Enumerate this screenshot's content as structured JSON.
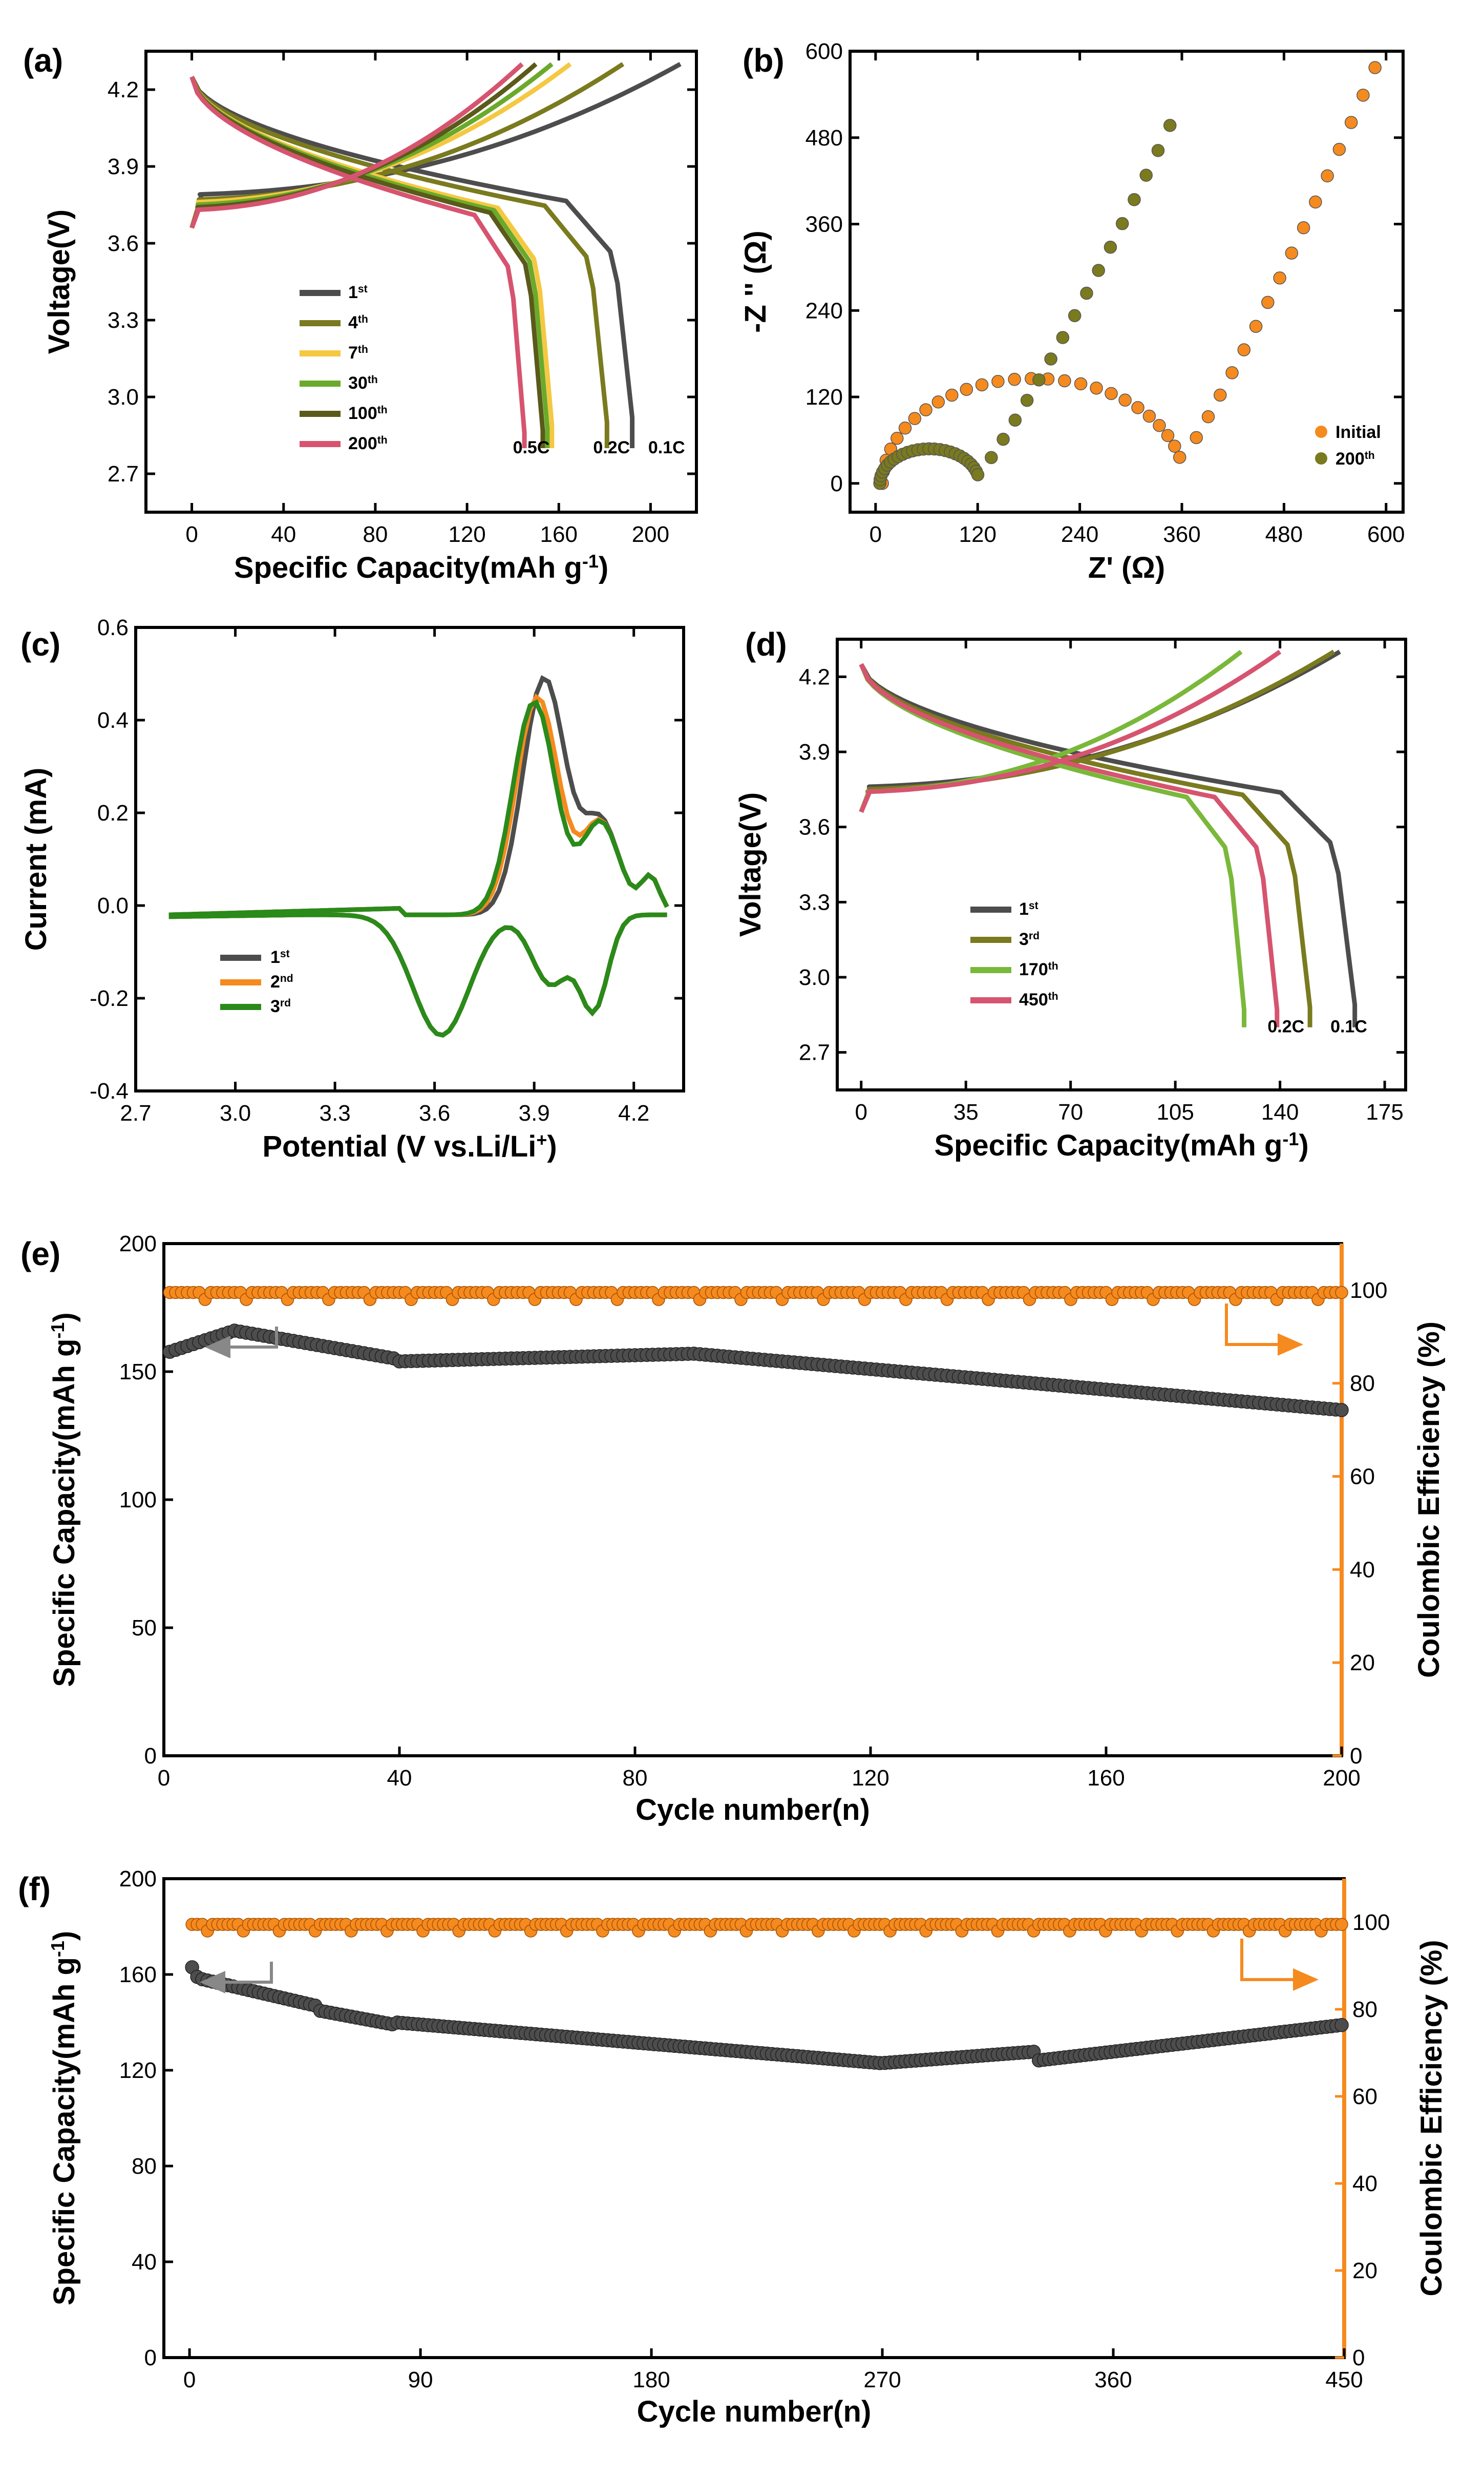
{
  "figure": {
    "panels": [
      "(a)",
      "(b)",
      "(c)",
      "(d)",
      "(e)",
      "(f)"
    ]
  },
  "chart_data": [
    {
      "id": "a",
      "type": "line",
      "panel_label": "(a)",
      "xlabel": "Specific Capacity(mAh g",
      "xlabel_sup": "-1",
      "xlabel_end": ")",
      "ylabel": "Voltage(V)",
      "xlim": [
        -20,
        220
      ],
      "ylim": [
        2.55,
        4.35
      ],
      "xticks": [
        0,
        40,
        80,
        120,
        160,
        200
      ],
      "yticks": [
        2.7,
        3.0,
        3.3,
        3.6,
        3.9,
        4.2
      ],
      "ytick_labels": [
        "2.7",
        "3.0",
        "3.3",
        "3.6",
        "3.9",
        "4.2"
      ],
      "rate_labels": [
        {
          "text": "0.5C",
          "x": 148,
          "y": 2.78
        },
        {
          "text": "0.2C",
          "x": 183,
          "y": 2.78
        },
        {
          "text": "0.1C",
          "x": 207,
          "y": 2.78
        }
      ],
      "series": [
        {
          "name": "1",
          "sup": "st",
          "color": "#4d4d4d",
          "charge_cap": 213,
          "discharge_cap": 192,
          "plateau": 3.79
        },
        {
          "name": "4",
          "sup": "th",
          "color": "#7a7a1f",
          "charge_cap": 188,
          "discharge_cap": 181,
          "plateau": 3.77
        },
        {
          "name": "7",
          "sup": "th",
          "color": "#f5c842",
          "charge_cap": 165,
          "discharge_cap": 157,
          "plateau": 3.76
        },
        {
          "name": "30",
          "sup": "th",
          "color": "#6aaa2a",
          "charge_cap": 157,
          "discharge_cap": 155,
          "plateau": 3.75
        },
        {
          "name": "100",
          "sup": "th",
          "color": "#5a5a1a",
          "charge_cap": 150,
          "discharge_cap": 153,
          "plateau": 3.74
        },
        {
          "name": "200",
          "sup": "th",
          "color": "#d6546f",
          "charge_cap": 144,
          "discharge_cap": 145,
          "plateau": 3.73
        }
      ]
    },
    {
      "id": "b",
      "type": "scatter",
      "panel_label": "(b)",
      "xlabel": "Z' (Ω)",
      "ylabel": "-Z '' (Ω)",
      "xlim": [
        -30,
        620
      ],
      "ylim": [
        -40,
        600
      ],
      "xticks": [
        0,
        120,
        240,
        360,
        480,
        600
      ],
      "yticks": [
        0,
        120,
        240,
        360,
        480,
        600
      ],
      "series": [
        {
          "name": "Initial",
          "sup": "",
          "color": "#f58a1f",
          "Rs": 8,
          "Rct": 355,
          "tail_slope": 1.85
        },
        {
          "name": "200",
          "sup": "th",
          "color": "#7a7a1f",
          "Rs": 5,
          "Rct": 117,
          "tail_slope": 1.6
        }
      ]
    },
    {
      "id": "c",
      "type": "line",
      "panel_label": "(c)",
      "xlabel": "Potential (V vs.Li/Li",
      "xlabel_sup": "+",
      "xlabel_end": ")",
      "ylabel": "Current (mA)",
      "xlim": [
        2.7,
        4.35
      ],
      "ylim": [
        -0.4,
        0.6
      ],
      "xticks": [
        2.7,
        3.0,
        3.3,
        3.6,
        3.9,
        4.2
      ],
      "xtick_labels": [
        "2.7",
        "3.0",
        "3.3",
        "3.6",
        "3.9",
        "4.2"
      ],
      "yticks": [
        -0.4,
        -0.2,
        0.0,
        0.2,
        0.4,
        0.6
      ],
      "ytick_labels": [
        "-0.4",
        "-0.2",
        "0.0",
        "0.2",
        "0.4",
        "0.6"
      ],
      "series": [
        {
          "name": "1",
          "sup": "st",
          "color": "#4d4d4d",
          "peak_pos": 3.93,
          "peak_val": 0.51
        },
        {
          "name": "2",
          "sup": "nd",
          "color": "#f58a1f",
          "peak_pos": 3.91,
          "peak_val": 0.47
        },
        {
          "name": "3",
          "sup": "rd",
          "color": "#2a8a1a",
          "peak_pos": 3.9,
          "peak_val": 0.46
        }
      ]
    },
    {
      "id": "d",
      "type": "line",
      "panel_label": "(d)",
      "xlabel": "Specific Capacity(mAh g",
      "xlabel_sup": "-1",
      "xlabel_end": ")",
      "ylabel": "Voltage(V)",
      "xlim": [
        -8,
        182
      ],
      "ylim": [
        2.55,
        4.35
      ],
      "xticks": [
        0,
        35,
        70,
        105,
        140,
        175
      ],
      "yticks": [
        2.7,
        3.0,
        3.3,
        3.6,
        3.9,
        4.2
      ],
      "ytick_labels": [
        "2.7",
        "3.0",
        "3.3",
        "3.6",
        "3.9",
        "4.2"
      ],
      "rate_labels": [
        {
          "text": "0.2C",
          "x": 142,
          "y": 2.78
        },
        {
          "text": "0.1C",
          "x": 163,
          "y": 2.78
        }
      ],
      "series": [
        {
          "name": "1",
          "sup": "st",
          "color": "#4d4d4d",
          "charge_cap": 160,
          "discharge_cap": 165,
          "plateau": 3.76
        },
        {
          "name": "3",
          "sup": "rd",
          "color": "#7a7a1f",
          "charge_cap": 158,
          "discharge_cap": 150,
          "plateau": 3.75
        },
        {
          "name": "170",
          "sup": "th",
          "color": "#7ab83a",
          "charge_cap": 127,
          "discharge_cap": 128,
          "plateau": 3.74
        },
        {
          "name": "450",
          "sup": "th",
          "color": "#d6546f",
          "charge_cap": 140,
          "discharge_cap": 139,
          "plateau": 3.74
        }
      ]
    },
    {
      "id": "e",
      "type": "scatter",
      "panel_label": "(e)",
      "xlabel": "Cycle number(n)",
      "ylabel": "Specific Capacity(mAh g",
      "ylabel_sup": "-1",
      "ylabel_end": ")",
      "y2label": "Coulombic Efficiency (%)",
      "xlim": [
        0,
        200
      ],
      "ylim": [
        0,
        200
      ],
      "y2lim": [
        0,
        110
      ],
      "xticks": [
        0,
        40,
        80,
        120,
        160,
        200
      ],
      "yticks": [
        0,
        50,
        100,
        150,
        200
      ],
      "y2ticks": [
        0,
        20,
        40,
        60,
        80,
        100
      ],
      "capacity_color": "#4d4d4d",
      "efficiency_color": "#f58a1f",
      "cycles": 200,
      "capacity_start": 157,
      "capacity_peak": 166,
      "capacity_end": 135,
      "efficiency_level": 99.5
    },
    {
      "id": "f",
      "type": "scatter",
      "panel_label": "(f)",
      "xlabel": "Cycle number(n)",
      "ylabel": "Specific Capacity(mAh g",
      "ylabel_sup": "-1",
      "ylabel_end": ")",
      "y2label": "Coulombic Efficiency (%)",
      "xlim": [
        -10,
        450
      ],
      "ylim": [
        0,
        200
      ],
      "y2lim": [
        0,
        110
      ],
      "xticks": [
        0,
        90,
        180,
        270,
        360,
        450
      ],
      "yticks": [
        0,
        40,
        80,
        120,
        160,
        200
      ],
      "y2ticks": [
        0,
        20,
        40,
        60,
        80,
        100
      ],
      "capacity_color": "#4d4d4d",
      "efficiency_color": "#f58a1f",
      "cycles": 450,
      "capacity_start": 165,
      "capacity_peak": 160,
      "capacity_end": 139,
      "efficiency_level": 99.5
    }
  ]
}
